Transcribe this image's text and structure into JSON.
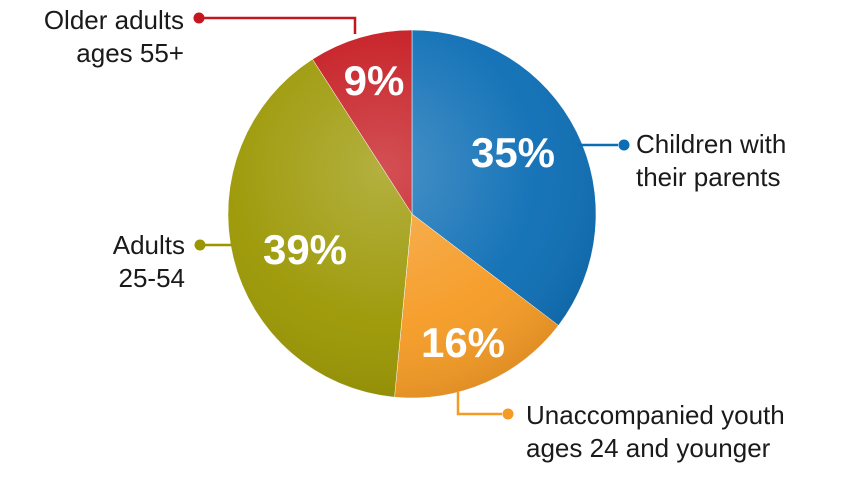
{
  "chart_data": {
    "type": "pie",
    "categories": [
      "Children with their parents",
      "Unaccompanied youth ages 24 and younger",
      "Adults 25-54",
      "Older adults ages 55+"
    ],
    "values": [
      35,
      16,
      39,
      9
    ],
    "value_labels": [
      "35%",
      "16%",
      "39%",
      "9%"
    ],
    "label_lines": [
      [
        "Children with",
        "their parents"
      ],
      [
        "Unaccompanied youth",
        "ages 24 and younger"
      ],
      [
        "Adults",
        "25-54"
      ],
      [
        "Older adults",
        "ages 55+"
      ]
    ],
    "colors": [
      "#0b6db4",
      "#f59a23",
      "#9a9600",
      "#c4161c"
    ],
    "start_angle_deg": 0,
    "direction": "clockwise",
    "legend": "none"
  }
}
